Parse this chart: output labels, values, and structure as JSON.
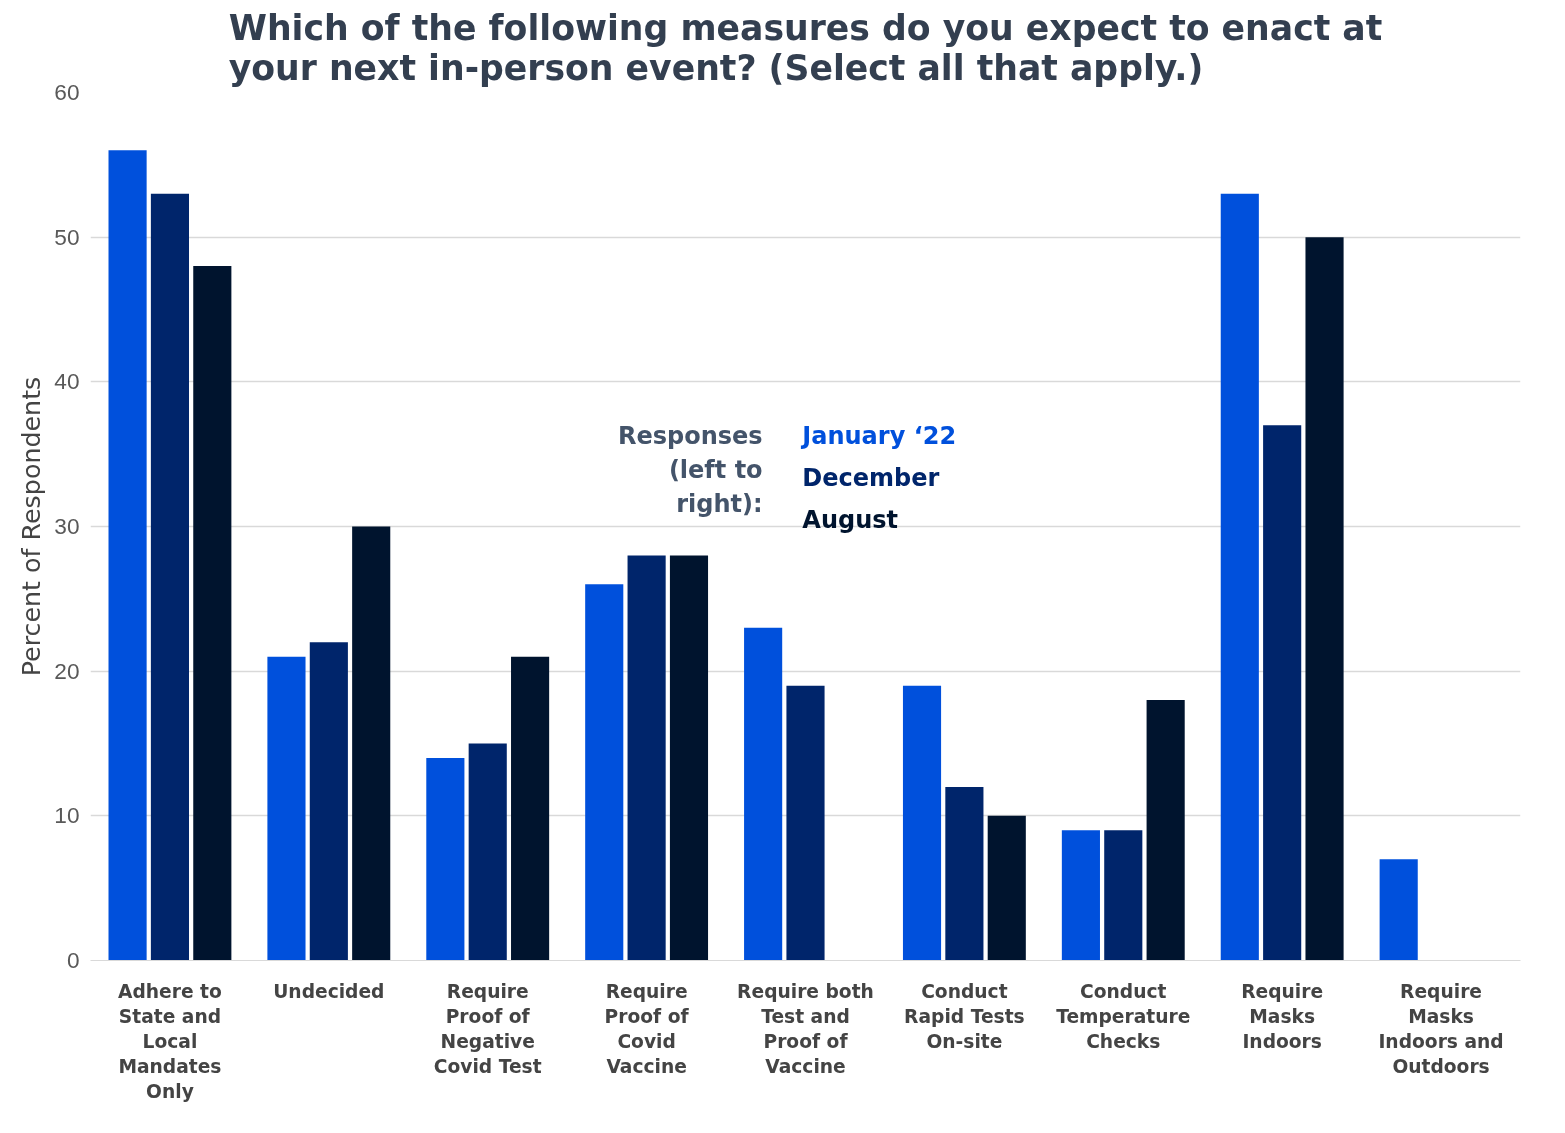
{
  "chart_data": {
    "type": "bar",
    "title": "Which of the following measures do you expect to enact at your next in-person event? (Select all that apply.)",
    "ylabel": "Percent of Respondents",
    "legend_title": "Responses (left to right):",
    "categories": [
      "Adhere to State and Local Mandates Only",
      "Undecided",
      "Require Proof of Negative Covid Test",
      "Require Proof of Covid Vaccine",
      "Require both Test and Proof of Vaccine",
      "Conduct Rapid Tests On-site",
      "Conduct Temperature Checks",
      "Require Masks Indoors",
      "Require Masks Indoors and Outdoors"
    ],
    "series": [
      {
        "name": "January ‘22",
        "color": "#0050dc",
        "values": [
          56,
          21,
          14,
          26,
          23,
          19,
          9,
          53,
          7
        ]
      },
      {
        "name": "December",
        "color": "#00256b",
        "values": [
          53,
          22,
          15,
          28,
          19,
          12,
          9,
          37,
          null
        ]
      },
      {
        "name": "August",
        "color": "#00142e",
        "values": [
          48,
          30,
          21,
          28,
          null,
          10,
          18,
          50,
          null
        ]
      }
    ],
    "ylim": [
      0,
      60
    ],
    "yticks": [
      0,
      10,
      20,
      30,
      40,
      50,
      60
    ],
    "grid": "y",
    "legend": "center"
  }
}
